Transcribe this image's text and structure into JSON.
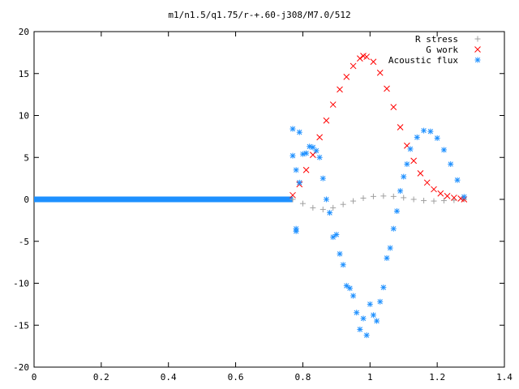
{
  "chart_data": {
    "type": "scatter",
    "title": "m1/n1.5/q1.75/r-+.60-j308/M7.0/512",
    "xlim": [
      0,
      1.4
    ],
    "ylim": [
      -20,
      20
    ],
    "x_ticks": [
      "0",
      "0.2",
      "0.4",
      "0.6",
      "0.8",
      "1",
      "1.2",
      "1.4"
    ],
    "y_ticks": [
      "20",
      "15",
      "10",
      "5",
      "0",
      "-5",
      "-10",
      "-15",
      "-20"
    ],
    "grid": false,
    "legend_position": "top-right",
    "series": [
      {
        "name": "R stress",
        "marker": "+",
        "color": "#a0a0a0",
        "points": [
          [
            0.77,
            0.0
          ],
          [
            0.8,
            -0.5
          ],
          [
            0.83,
            -1.0
          ],
          [
            0.86,
            -1.2
          ],
          [
            0.89,
            -1.0
          ],
          [
            0.92,
            -0.6
          ],
          [
            0.95,
            -0.2
          ],
          [
            0.98,
            0.15
          ],
          [
            1.01,
            0.35
          ],
          [
            1.04,
            0.4
          ],
          [
            1.07,
            0.35
          ],
          [
            1.1,
            0.2
          ],
          [
            1.13,
            0.0
          ],
          [
            1.16,
            -0.15
          ],
          [
            1.19,
            -0.2
          ],
          [
            1.22,
            -0.15
          ],
          [
            1.25,
            -0.1
          ],
          [
            1.28,
            0.0
          ]
        ]
      },
      {
        "name": "G work",
        "marker": "x",
        "color": "#ff0000",
        "points": [
          [
            0.77,
            0.5
          ],
          [
            0.79,
            1.8
          ],
          [
            0.81,
            3.5
          ],
          [
            0.83,
            5.3
          ],
          [
            0.85,
            7.4
          ],
          [
            0.87,
            9.4
          ],
          [
            0.89,
            11.3
          ],
          [
            0.91,
            13.1
          ],
          [
            0.93,
            14.6
          ],
          [
            0.95,
            15.9
          ],
          [
            0.97,
            16.8
          ],
          [
            0.98,
            17.1
          ],
          [
            0.99,
            17.0
          ],
          [
            1.01,
            16.4
          ],
          [
            1.03,
            15.1
          ],
          [
            1.05,
            13.2
          ],
          [
            1.07,
            11.0
          ],
          [
            1.09,
            8.6
          ],
          [
            1.11,
            6.4
          ],
          [
            1.13,
            4.6
          ],
          [
            1.15,
            3.1
          ],
          [
            1.17,
            2.0
          ],
          [
            1.19,
            1.2
          ],
          [
            1.21,
            0.7
          ],
          [
            1.23,
            0.4
          ],
          [
            1.25,
            0.2
          ],
          [
            1.27,
            0.1
          ],
          [
            1.28,
            0.0
          ]
        ]
      },
      {
        "name": "Acoustic flux",
        "marker": "*",
        "color": "#1e90ff",
        "points": [
          [
            0.77,
            8.4
          ],
          [
            0.77,
            5.2
          ],
          [
            0.78,
            3.5
          ],
          [
            0.78,
            -3.5
          ],
          [
            0.78,
            -3.8
          ],
          [
            0.79,
            8.0
          ],
          [
            0.79,
            2.0
          ],
          [
            0.8,
            5.4
          ],
          [
            0.81,
            5.5
          ],
          [
            0.82,
            6.3
          ],
          [
            0.83,
            6.2
          ],
          [
            0.84,
            5.8
          ],
          [
            0.85,
            5.0
          ],
          [
            0.86,
            2.5
          ],
          [
            0.87,
            0.0
          ],
          [
            0.88,
            -1.6
          ],
          [
            0.89,
            -4.5
          ],
          [
            0.9,
            -4.2
          ],
          [
            0.91,
            -6.5
          ],
          [
            0.92,
            -7.8
          ],
          [
            0.93,
            -10.3
          ],
          [
            0.94,
            -10.6
          ],
          [
            0.95,
            -11.5
          ],
          [
            0.96,
            -13.5
          ],
          [
            0.97,
            -15.5
          ],
          [
            0.98,
            -14.2
          ],
          [
            0.99,
            -16.2
          ],
          [
            1.0,
            -12.5
          ],
          [
            1.01,
            -13.8
          ],
          [
            1.02,
            -14.5
          ],
          [
            1.03,
            -12.2
          ],
          [
            1.04,
            -10.5
          ],
          [
            1.05,
            -7.0
          ],
          [
            1.06,
            -5.8
          ],
          [
            1.07,
            -3.5
          ],
          [
            1.08,
            -1.4
          ],
          [
            1.09,
            1.0
          ],
          [
            1.1,
            2.7
          ],
          [
            1.11,
            4.2
          ],
          [
            1.12,
            6.0
          ],
          [
            1.14,
            7.4
          ],
          [
            1.16,
            8.2
          ],
          [
            1.18,
            8.1
          ],
          [
            1.2,
            7.3
          ],
          [
            1.22,
            5.9
          ],
          [
            1.24,
            4.2
          ],
          [
            1.26,
            2.3
          ],
          [
            1.28,
            0.3
          ]
        ]
      }
    ]
  }
}
